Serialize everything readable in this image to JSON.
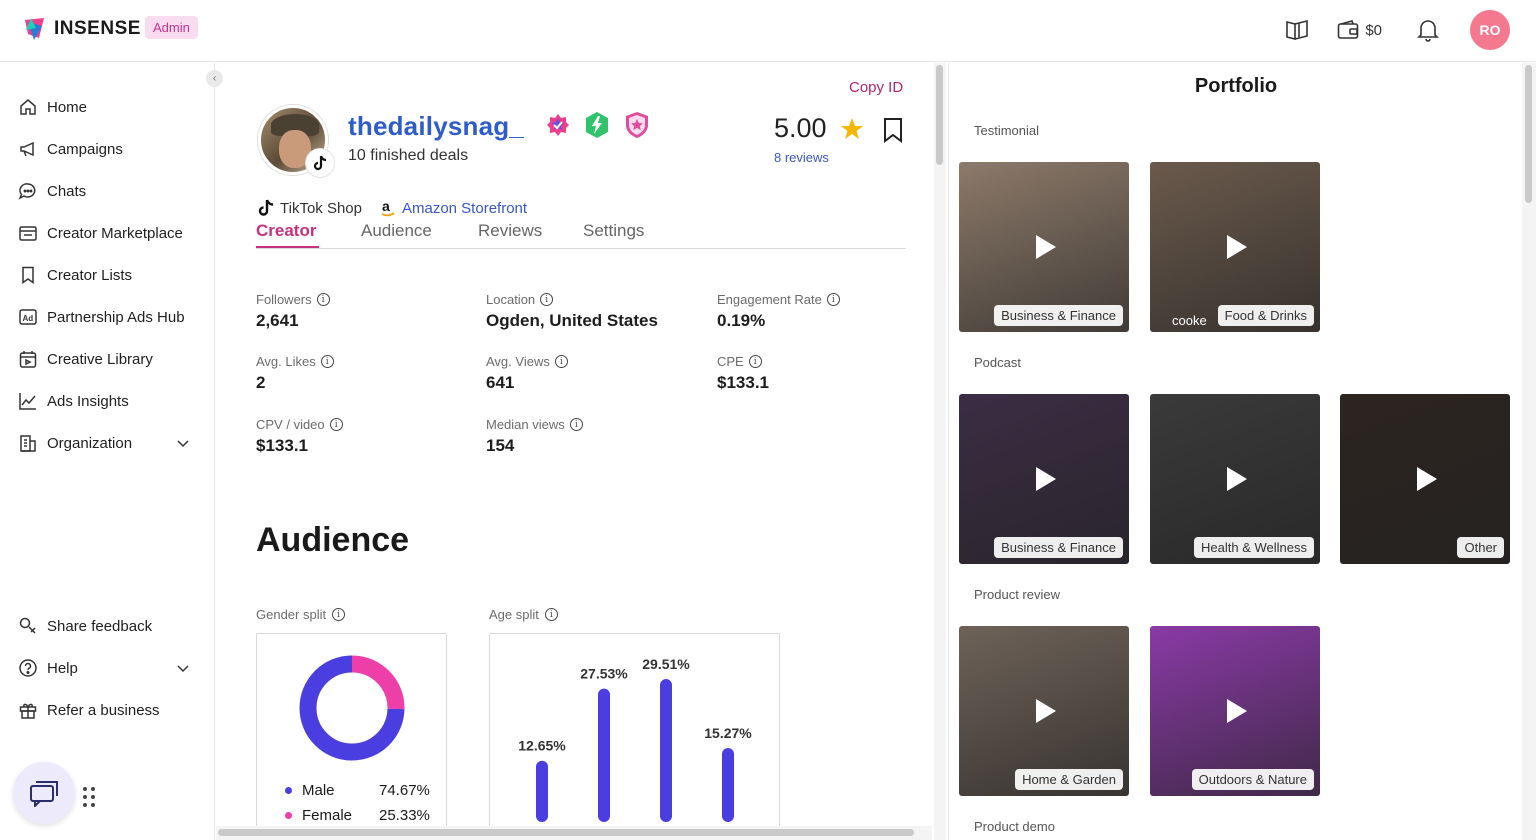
{
  "brand": {
    "name": "INSENSE",
    "badge": "Admin"
  },
  "topbar": {
    "wallet_amount": "$0",
    "avatar_initials": "RO",
    "avatar_color": "#f4798f"
  },
  "sidebar": {
    "items": [
      {
        "label": "Home",
        "icon": "home-icon"
      },
      {
        "label": "Campaigns",
        "icon": "megaphone-icon"
      },
      {
        "label": "Chats",
        "icon": "chat-bubble-icon"
      },
      {
        "label": "Creator Marketplace",
        "icon": "storefront-icon"
      },
      {
        "label": "Creator Lists",
        "icon": "bookmark-icon"
      },
      {
        "label": "Partnership Ads Hub",
        "icon": "ad-icon"
      },
      {
        "label": "Creative Library",
        "icon": "calendar-icon"
      },
      {
        "label": "Ads Insights",
        "icon": "chart-line-icon"
      },
      {
        "label": "Organization",
        "icon": "building-icon"
      }
    ],
    "bottom_items": [
      {
        "label": "Share feedback",
        "icon": "feedback-icon"
      },
      {
        "label": "Help",
        "icon": "help-icon"
      },
      {
        "label": "Refer a business",
        "icon": "gift-icon"
      }
    ]
  },
  "profile": {
    "copy_id": "Copy ID",
    "username": "thedailysnag_",
    "deals": "10 finished deals",
    "rating": "5.00",
    "reviews": "8 reviews",
    "shops": [
      "TikTok Shop",
      "Amazon Storefront"
    ],
    "tabs": [
      "Creator",
      "Audience",
      "Reviews",
      "Settings"
    ],
    "active_tab": "Creator",
    "stats": [
      {
        "label": "Followers",
        "value": "2,641"
      },
      {
        "label": "Location",
        "value": "Ogden, United States"
      },
      {
        "label": "Engagement Rate",
        "value": "0.19%"
      },
      {
        "label": "Avg. Likes",
        "value": "2"
      },
      {
        "label": "Avg. Views",
        "value": "641"
      },
      {
        "label": "CPE",
        "value": "$133.1"
      },
      {
        "label": "CPV / video",
        "value": "$133.1"
      },
      {
        "label": "Median views",
        "value": "154"
      }
    ]
  },
  "audience": {
    "title": "Audience",
    "gender_label": "Gender split",
    "age_label": "Age split",
    "colors": {
      "male": "#4a3ee0",
      "female": "#ee3fa8"
    }
  },
  "chart_data": [
    {
      "type": "pie",
      "title": "Gender split",
      "categories": [
        "Male",
        "Female"
      ],
      "values": [
        74.67,
        25.33
      ],
      "labels": [
        "74.67%",
        "25.33%"
      ],
      "legend": "bottom"
    },
    {
      "type": "bar",
      "title": "Age split",
      "categories": [
        "",
        "",
        "",
        ""
      ],
      "values": [
        12.65,
        27.53,
        29.51,
        15.27
      ],
      "labels": [
        "12.65%",
        "27.53%",
        "29.51%",
        "15.27%"
      ],
      "ylim": [
        0,
        32
      ]
    }
  ],
  "portfolio": {
    "title": "Portfolio",
    "sections": [
      {
        "label": "Testimonial",
        "items": [
          {
            "tag": "Business & Finance",
            "bg": "#8d7a6a"
          },
          {
            "tag": "Food & Drinks",
            "bg": "#6b5a4c"
          }
        ]
      },
      {
        "label": "Podcast",
        "items": [
          {
            "tag": "Business & Finance",
            "bg": "#3b2d44"
          },
          {
            "tag": "Health & Wellness",
            "bg": "#3a3a3a"
          },
          {
            "tag": "Other",
            "bg": "#2c2420"
          }
        ]
      },
      {
        "label": "Product review",
        "items": [
          {
            "tag": "Home & Garden",
            "bg": "#6e6258"
          },
          {
            "tag": "Outdoors & Nature",
            "bg": "#8a3aa6"
          }
        ]
      },
      {
        "label": "Product demo",
        "items": []
      }
    ],
    "overlay_text": "cooke"
  }
}
